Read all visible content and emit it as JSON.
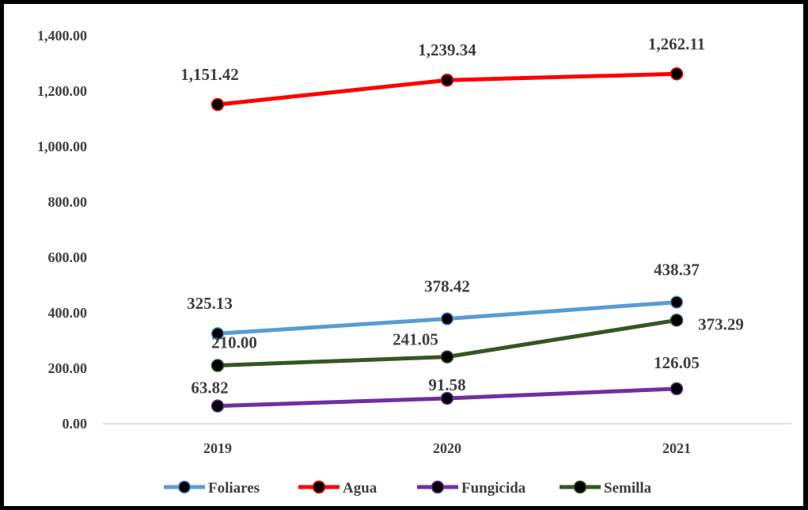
{
  "chart_data": {
    "type": "line",
    "title": "",
    "xlabel": "",
    "ylabel": "",
    "categories": [
      "2019",
      "2020",
      "2021"
    ],
    "ylim": [
      0,
      1400
    ],
    "yticks": [
      "0.00",
      "200.00",
      "400.00",
      "600.00",
      "800.00",
      "1,000.00",
      "1,200.00",
      "1,400.00"
    ],
    "grid": false,
    "legend_position": "bottom",
    "series": [
      {
        "name": "Foliares",
        "color": "#5B9BD5",
        "values": [
          325.13,
          378.42,
          438.37
        ],
        "labels": [
          "325.13",
          "378.42",
          "438.37"
        ]
      },
      {
        "name": "Agua",
        "color": "#FF0000",
        "values": [
          1151.42,
          1239.34,
          1262.11
        ],
        "labels": [
          "1,151.42",
          "1,239.34",
          "1,262.11"
        ]
      },
      {
        "name": "Fungicida",
        "color": "#7030A0",
        "values": [
          63.82,
          91.58,
          126.05
        ],
        "labels": [
          "63.82",
          "91.58",
          "126.05"
        ]
      },
      {
        "name": "Semilla",
        "color": "#375623",
        "values": [
          210.0,
          241.05,
          373.29
        ],
        "labels": [
          "210.00",
          "241.05",
          "373.29"
        ]
      }
    ]
  }
}
